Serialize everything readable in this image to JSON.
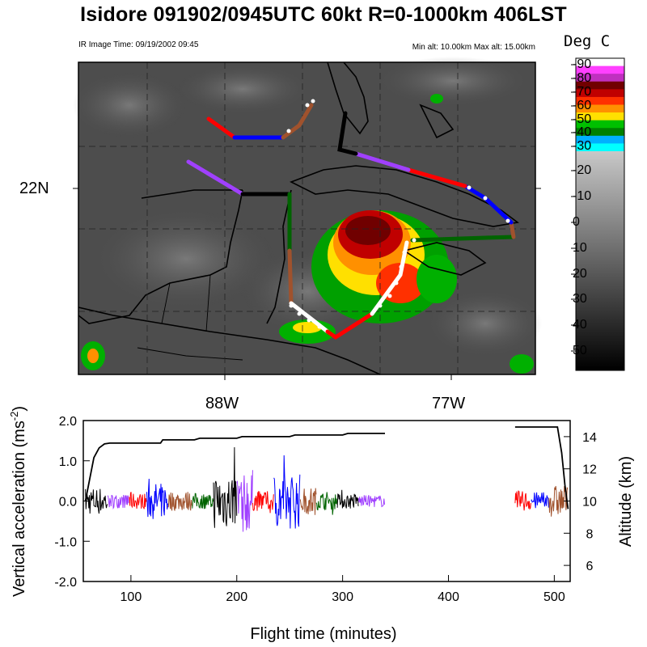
{
  "header": {
    "title": "Isidore 091902/0945UTC 60kt  R=0-1000km 406LST",
    "ir_time": "IR Image Time: 09/19/2002 09:45",
    "alt_range": "Min alt: 10.00km  Max alt: 15.00km"
  },
  "map": {
    "lat_label": "22N",
    "lon_labels": [
      "88W",
      "77W"
    ],
    "colorbar": {
      "title": "Deg C",
      "labels": [
        "-90",
        "-80",
        "-70",
        "-60",
        "-50",
        "-40",
        "-30",
        "-20",
        "-10",
        "0",
        "10",
        "20",
        "30",
        "40",
        "50"
      ],
      "colors": [
        "#ffffff",
        "#ff40ff",
        "#c030c0",
        "#700000",
        "#c00000",
        "#ff3000",
        "#ff9000",
        "#ffe000",
        "#00c000",
        "#008000",
        "#00b0ff",
        "#00ffff"
      ]
    },
    "track_colors": [
      "#000000",
      "#a040ff",
      "#ff0000",
      "#a0522d",
      "#006400",
      "#0000ff"
    ]
  },
  "chart_data": {
    "type": "line",
    "xlabel": "Flight time (minutes)",
    "ylabel": "Vertical acceleration (ms",
    "ylabel_sup": "-2",
    "ylabel_end": ")",
    "y2label": "Altitude (km)",
    "xlim": [
      55,
      515
    ],
    "ylim": [
      -2.0,
      2.0
    ],
    "y2lim": [
      5,
      15
    ],
    "xticks": [
      100,
      200,
      300,
      400,
      500
    ],
    "yticks": [
      "2.0",
      "1.0",
      "0.0",
      "-1.0",
      "-2.0"
    ],
    "y2ticks": [
      6,
      8,
      10,
      12,
      14
    ],
    "altitude": {
      "name": "Altitude",
      "x": [
        57,
        60,
        65,
        70,
        75,
        80,
        128,
        130,
        160,
        165,
        200,
        205,
        250,
        255,
        300,
        305,
        340,
        463,
        503,
        507,
        510,
        513
      ],
      "y": [
        10.0,
        11.0,
        12.7,
        13.3,
        13.55,
        13.6,
        13.6,
        13.8,
        13.8,
        13.9,
        13.9,
        14.0,
        14.0,
        14.1,
        14.1,
        14.2,
        14.2,
        14.6,
        14.6,
        13.0,
        11.0,
        9.5
      ]
    },
    "acceleration_segments": [
      {
        "color": "#000000",
        "x": [
          57,
          78
        ],
        "amp": 0.35,
        "peak": 0.55
      },
      {
        "color": "#a040ff",
        "x": [
          78,
          98
        ],
        "amp": 0.18,
        "peak": 0.25
      },
      {
        "color": "#ff0000",
        "x": [
          98,
          115
        ],
        "amp": 0.2,
        "peak": 0.3
      },
      {
        "color": "#0000ff",
        "x": [
          115,
          135
        ],
        "amp": 0.45,
        "peak": 0.65
      },
      {
        "color": "#a0522d",
        "x": [
          135,
          158
        ],
        "amp": 0.25,
        "peak": 0.4
      },
      {
        "color": "#006400",
        "x": [
          158,
          178
        ],
        "amp": 0.2,
        "peak": 0.35
      },
      {
        "color": "#000000",
        "x": [
          178,
          200
        ],
        "amp": 0.7,
        "peak": 1.35
      },
      {
        "color": "#a040ff",
        "x": [
          200,
          215
        ],
        "amp": 0.8,
        "peak": 1.3
      },
      {
        "color": "#ff0000",
        "x": [
          215,
          235
        ],
        "amp": 0.25,
        "peak": 0.4
      },
      {
        "color": "#0000ff",
        "x": [
          235,
          260
        ],
        "amp": 0.7,
        "peak": 1.3
      },
      {
        "color": "#a0522d",
        "x": [
          260,
          275
        ],
        "amp": 0.35,
        "peak": 0.6
      },
      {
        "color": "#006400",
        "x": [
          275,
          295
        ],
        "amp": 0.22,
        "peak": 0.35
      },
      {
        "color": "#000000",
        "x": [
          295,
          315
        ],
        "amp": 0.2,
        "peak": 0.3
      },
      {
        "color": "#a040ff",
        "x": [
          315,
          340
        ],
        "amp": 0.15,
        "peak": 0.25
      },
      {
        "color": "#ff0000",
        "x": [
          463,
          478
        ],
        "amp": 0.25,
        "peak": 0.35
      },
      {
        "color": "#0000ff",
        "x": [
          478,
          495
        ],
        "amp": 0.22,
        "peak": 0.3
      },
      {
        "color": "#a0522d",
        "x": [
          495,
          513
        ],
        "amp": 0.4,
        "peak": 0.9
      }
    ]
  }
}
